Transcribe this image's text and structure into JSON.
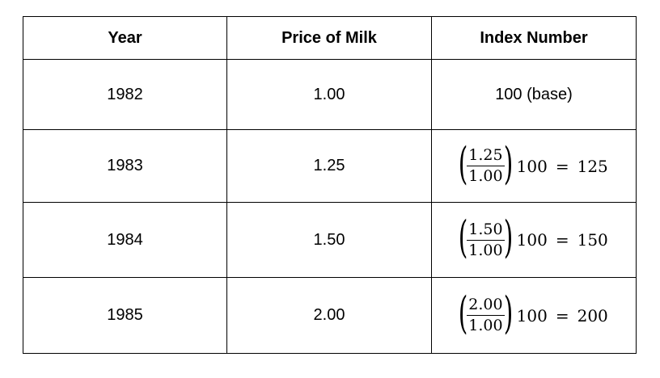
{
  "table": {
    "headers": [
      "Year",
      "Price of Milk",
      "Index Number"
    ],
    "rows": [
      {
        "year": "1982",
        "price": "1.00",
        "index_text": "100 (base)"
      },
      {
        "year": "1983",
        "price": "1.25",
        "numerator": "1.25",
        "denominator": "1.00",
        "multiplier": "100",
        "equals": "=",
        "result": "125"
      },
      {
        "year": "1984",
        "price": "1.50",
        "numerator": "1.50",
        "denominator": "1.00",
        "multiplier": "100",
        "equals": "=",
        "result": "150"
      },
      {
        "year": "1985",
        "price": "2.00",
        "numerator": "2.00",
        "denominator": "1.00",
        "multiplier": "100",
        "equals": "=",
        "result": "200"
      }
    ]
  }
}
